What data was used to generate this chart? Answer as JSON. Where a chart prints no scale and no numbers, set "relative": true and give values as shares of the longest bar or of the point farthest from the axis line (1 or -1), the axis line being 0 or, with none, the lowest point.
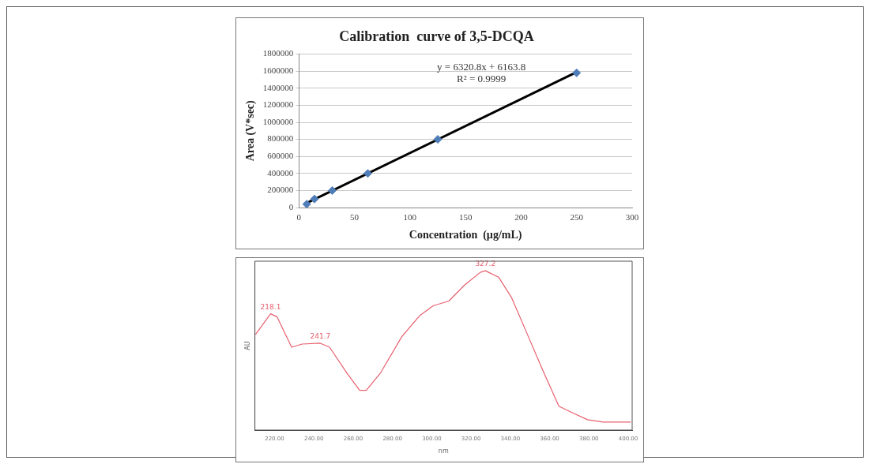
{
  "chart_data": [
    {
      "type": "scatter",
      "title": "Calibration  curve of 3,5-DCQA",
      "xlabel": "Concentration  (µg/mL)",
      "ylabel": "Area (V*sec)",
      "series": [
        {
          "type": "scatter",
          "color": "#4f7db8",
          "x": [
            7,
            14,
            30,
            62,
            125,
            250
          ],
          "values": [
            40000,
            100000,
            200000,
            400000,
            800000,
            1580000
          ],
          "marker": "diamond"
        },
        {
          "type": "line",
          "color": "#000000",
          "x": [
            5,
            250
          ],
          "values": [
            40000,
            1590000
          ],
          "marker": "none"
        }
      ],
      "xlim": [
        0,
        300
      ],
      "xticks": [
        0,
        50,
        100,
        150,
        200,
        250,
        300
      ],
      "ylim": [
        0,
        1800000
      ],
      "yticks": [
        0,
        200000,
        400000,
        600000,
        800000,
        1000000,
        1200000,
        1400000,
        1600000,
        1800000
      ],
      "grid": "y",
      "legend": false,
      "annotations": [
        "y = 6320.8x + 6163.8",
        "R² = 0.9999"
      ]
    },
    {
      "type": "line",
      "relative": true,
      "xlabel": "nm",
      "ylabel": "AU",
      "legend": false,
      "grid": false,
      "marker": "none",
      "series": [
        {
          "color": "#e8606e",
          "x": [
            210.3,
            218,
            221.3,
            228.7,
            234,
            243.3,
            248,
            256.7,
            263.3,
            266.7,
            274,
            284.7,
            294,
            300.7,
            308.7,
            316.7,
            324.7,
            327.3,
            334,
            340.7,
            348.7,
            356.7,
            364.7,
            371.3,
            379.3,
            387.3,
            401.3
          ],
          "values": [
            0.6,
            0.73,
            0.71,
            0.52,
            0.54,
            0.545,
            0.52,
            0.36,
            0.25,
            0.25,
            0.36,
            0.585,
            0.72,
            0.78,
            0.81,
            0.91,
            0.99,
            1.0,
            0.96,
            0.83,
            0.6,
            0.37,
            0.15,
            0.11,
            0.065,
            0.05,
            0.05
          ]
        }
      ],
      "xlim": [
        210,
        402
      ],
      "xticks": [
        {
          "value": 220,
          "label": "220.00"
        },
        {
          "value": 240,
          "label": "240.00"
        },
        {
          "value": 260,
          "label": "260.00"
        },
        {
          "value": 280,
          "label": "280.00"
        },
        {
          "value": 300,
          "label": "300.00"
        },
        {
          "value": 320,
          "label": "320.00"
        },
        {
          "value": 340,
          "label": "340.00"
        },
        {
          "value": 360,
          "label": "360.00"
        },
        {
          "value": 380,
          "label": "380.00"
        },
        {
          "value": 400,
          "label": "400.00"
        }
      ],
      "annotations": [
        {
          "text": "218.1",
          "x": 218,
          "y": 0.73
        },
        {
          "text": "241.7",
          "x": 243.3,
          "y": 0.545
        },
        {
          "text": "327.2",
          "x": 327.3,
          "y": 1.0
        }
      ]
    }
  ]
}
